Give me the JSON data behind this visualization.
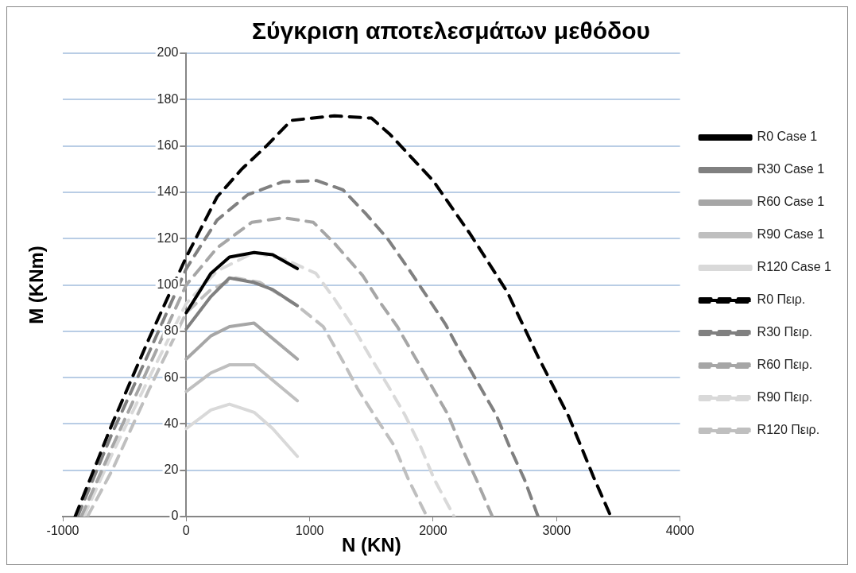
{
  "chart_data": {
    "type": "line",
    "title": "Σύγκριση αποτελεσμάτων μεθόδου",
    "xlabel": "N (KN)",
    "ylabel": "M (KNm)",
    "xlim": [
      -1000,
      4000
    ],
    "xticks": [
      -1000,
      0,
      1000,
      2000,
      3000,
      4000
    ],
    "ylim": [
      0,
      200
    ],
    "yticks": [
      0,
      20,
      40,
      60,
      80,
      100,
      120,
      140,
      160,
      180,
      200
    ],
    "grid": "y",
    "legend": "right",
    "marker": "none",
    "series": [
      {
        "name": "R0 Case 1",
        "color": "#000000",
        "line_style": "solid",
        "x": [
          0,
          200,
          350,
          550,
          700,
          900
        ],
        "values": [
          88,
          105,
          112,
          114,
          113,
          107
        ]
      },
      {
        "name": "R30 Case 1",
        "color": "#808080",
        "line_style": "solid",
        "x": [
          0,
          200,
          350,
          550,
          700,
          900
        ],
        "values": [
          81,
          95,
          103,
          101,
          98,
          91
        ]
      },
      {
        "name": "R60 Case 1",
        "color": "#a6a6a6",
        "line_style": "solid",
        "x": [
          0,
          200,
          350,
          550,
          900
        ],
        "values": [
          68,
          78,
          82,
          83.5,
          68
        ]
      },
      {
        "name": "R90 Case 1",
        "color": "#bfbfbf",
        "line_style": "solid",
        "x": [
          0,
          200,
          350,
          550,
          900
        ],
        "values": [
          54,
          62,
          65.5,
          65.5,
          50
        ]
      },
      {
        "name": "R120 Case 1",
        "color": "#d9d9d9",
        "line_style": "solid",
        "x": [
          0,
          200,
          350,
          550,
          700,
          900
        ],
        "values": [
          38,
          46,
          48.5,
          45,
          38,
          26
        ]
      },
      {
        "name": "R0 Πειρ.",
        "color": "#000000",
        "line_style": "dashed",
        "x": [
          -900,
          -600,
          -300,
          0,
          250,
          450,
          650,
          850,
          1200,
          1500,
          1650,
          2000,
          2300,
          2600,
          2850,
          3100,
          3300,
          3440
        ],
        "values": [
          0,
          40,
          77,
          112,
          138,
          150,
          160,
          171,
          173,
          172,
          165,
          145,
          122,
          97,
          69,
          43,
          17,
          0
        ]
      },
      {
        "name": "R30 Πειρ.",
        "color": "#808080",
        "line_style": "dashed",
        "x": [
          -880,
          -600,
          -300,
          0,
          250,
          500,
          780,
          1060,
          1270,
          1450,
          1630,
          1800,
          1950,
          2100,
          2230,
          2370,
          2510,
          2620,
          2740,
          2850
        ],
        "values": [
          0,
          36,
          71,
          107,
          128,
          139,
          144.5,
          145,
          141,
          131,
          120,
          107,
          95,
          83,
          70,
          57,
          44,
          30,
          16,
          0
        ]
      },
      {
        "name": "R60 Πειρ.",
        "color": "#a6a6a6",
        "line_style": "dashed",
        "x": [
          -850,
          -600,
          -300,
          0,
          250,
          530,
          790,
          1030,
          1200,
          1430,
          1550,
          1710,
          1840,
          1980,
          2120,
          2230,
          2350,
          2480
        ],
        "values": [
          0,
          30,
          65,
          100,
          116,
          127,
          129,
          127,
          118,
          104,
          94,
          82,
          70,
          57,
          44,
          30,
          16,
          0
        ]
      },
      {
        "name": "R90 Πειρ.",
        "color": "#d9d9d9",
        "line_style": "dashed",
        "x": [
          -830,
          -600,
          -300,
          0,
          250,
          550,
          800,
          1050,
          1200,
          1350,
          1490,
          1640,
          1770,
          1900,
          2010,
          2170
        ],
        "values": [
          0,
          27,
          60,
          92,
          106,
          114,
          111,
          105,
          94,
          82,
          69,
          56,
          44,
          30,
          16,
          0
        ]
      },
      {
        "name": "R120 Πειρ.",
        "color": "#bfbfbf",
        "line_style": "dashed",
        "x": [
          -800,
          -600,
          -300,
          0,
          200,
          400,
          600,
          900,
          1110,
          1270,
          1390,
          1520,
          1680,
          1800,
          1950
        ],
        "values": [
          0,
          20,
          55,
          88,
          98,
          103,
          101,
          91,
          82,
          67,
          55,
          44,
          31,
          16,
          0
        ]
      }
    ]
  }
}
